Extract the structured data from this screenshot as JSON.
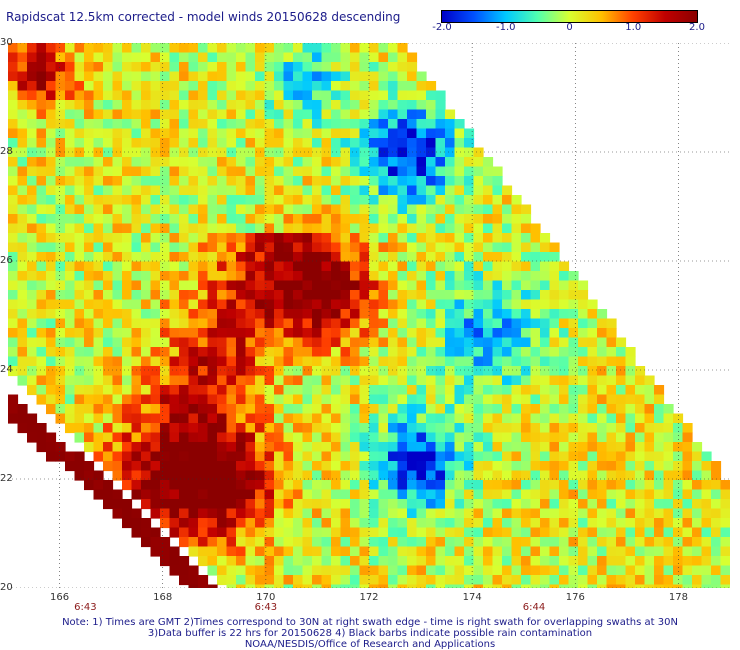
{
  "title": "Rapidscat 12.5km corrected - model winds 20150628 descending",
  "colorbar": {
    "labels": [
      "-2.0",
      "-1.0",
      "0",
      "1.0",
      "2.0"
    ],
    "values": [
      -2.0,
      -1.0,
      0,
      1.0,
      2.0
    ],
    "min": -2.0,
    "max": 2.0,
    "colors": [
      "#0000c8",
      "#0050ff",
      "#00c8ff",
      "#50ffb0",
      "#d8ff30",
      "#ffc000",
      "#ff4000",
      "#c00000",
      "#8b0000"
    ]
  },
  "map": {
    "lon_range": [
      165,
      179
    ],
    "lat_range": [
      20,
      30
    ],
    "lon_ticks": [
      "166",
      "168",
      "170",
      "172",
      "174",
      "176",
      "178"
    ],
    "lon_tick_values": [
      166,
      168,
      170,
      172,
      174,
      176,
      178
    ],
    "lat_ticks": [
      "30",
      "28",
      "26",
      "24",
      "22",
      "20"
    ],
    "lat_tick_values": [
      30,
      28,
      26,
      24,
      22,
      20
    ],
    "grid": true,
    "times": [
      {
        "label": "6:43",
        "lon": 166.5
      },
      {
        "label": "6:43",
        "lon": 170
      },
      {
        "label": "6:44",
        "lon": 175.2
      }
    ]
  },
  "notes": [
    "Note: 1) Times are GMT 2)Times correspond to 30N at right swath edge - time is right swath for overlapping swaths at 30N",
    "3)Data buffer is 22 hrs for 20150628 4) Black barbs indicate possible rain contamination",
    "NOAA/NESDIS/Office of Research and Applications"
  ]
}
